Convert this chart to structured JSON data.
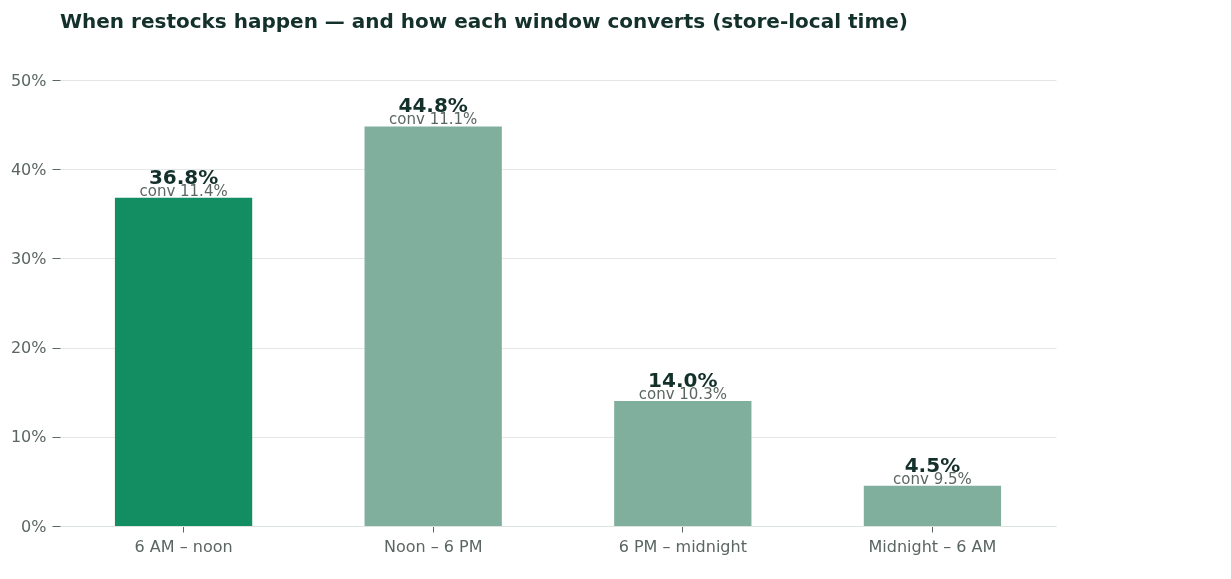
{
  "chart_data": {
    "type": "bar",
    "title": "When restocks happen — and how each window converts (store-local time)",
    "categories": [
      "6 AM – noon",
      "Noon – 6 PM",
      "6 PM – midnight",
      "Midnight – 6 AM"
    ],
    "values": [
      36.8,
      44.8,
      14.0,
      4.5
    ],
    "colors": [
      "#138d62",
      "#80af9d",
      "#80af9d",
      "#80af9d"
    ],
    "value_labels": [
      "36.8%",
      "44.8%",
      "14.0%",
      "4.5%"
    ],
    "annotations": [
      {
        "text": "conv 11.4%",
        "x": "6 AM – noon",
        "y": 36.8
      },
      {
        "text": "conv 11.1%",
        "x": "Noon – 6 PM",
        "y": 44.8
      },
      {
        "text": "conv 10.3%",
        "x": "6 PM – midnight",
        "y": 14.0
      },
      {
        "text": "conv 9.5%",
        "x": "Midnight – 6 AM",
        "y": 4.5
      }
    ],
    "ylim": [
      0,
      50
    ],
    "yticks": [
      {
        "value": 0,
        "label": "0%"
      },
      {
        "value": 10,
        "label": "10%"
      },
      {
        "value": 20,
        "label": "20%"
      },
      {
        "value": 30,
        "label": "30%"
      },
      {
        "value": 40,
        "label": "40%"
      },
      {
        "value": 50,
        "label": "50%"
      }
    ],
    "grid": "y"
  }
}
